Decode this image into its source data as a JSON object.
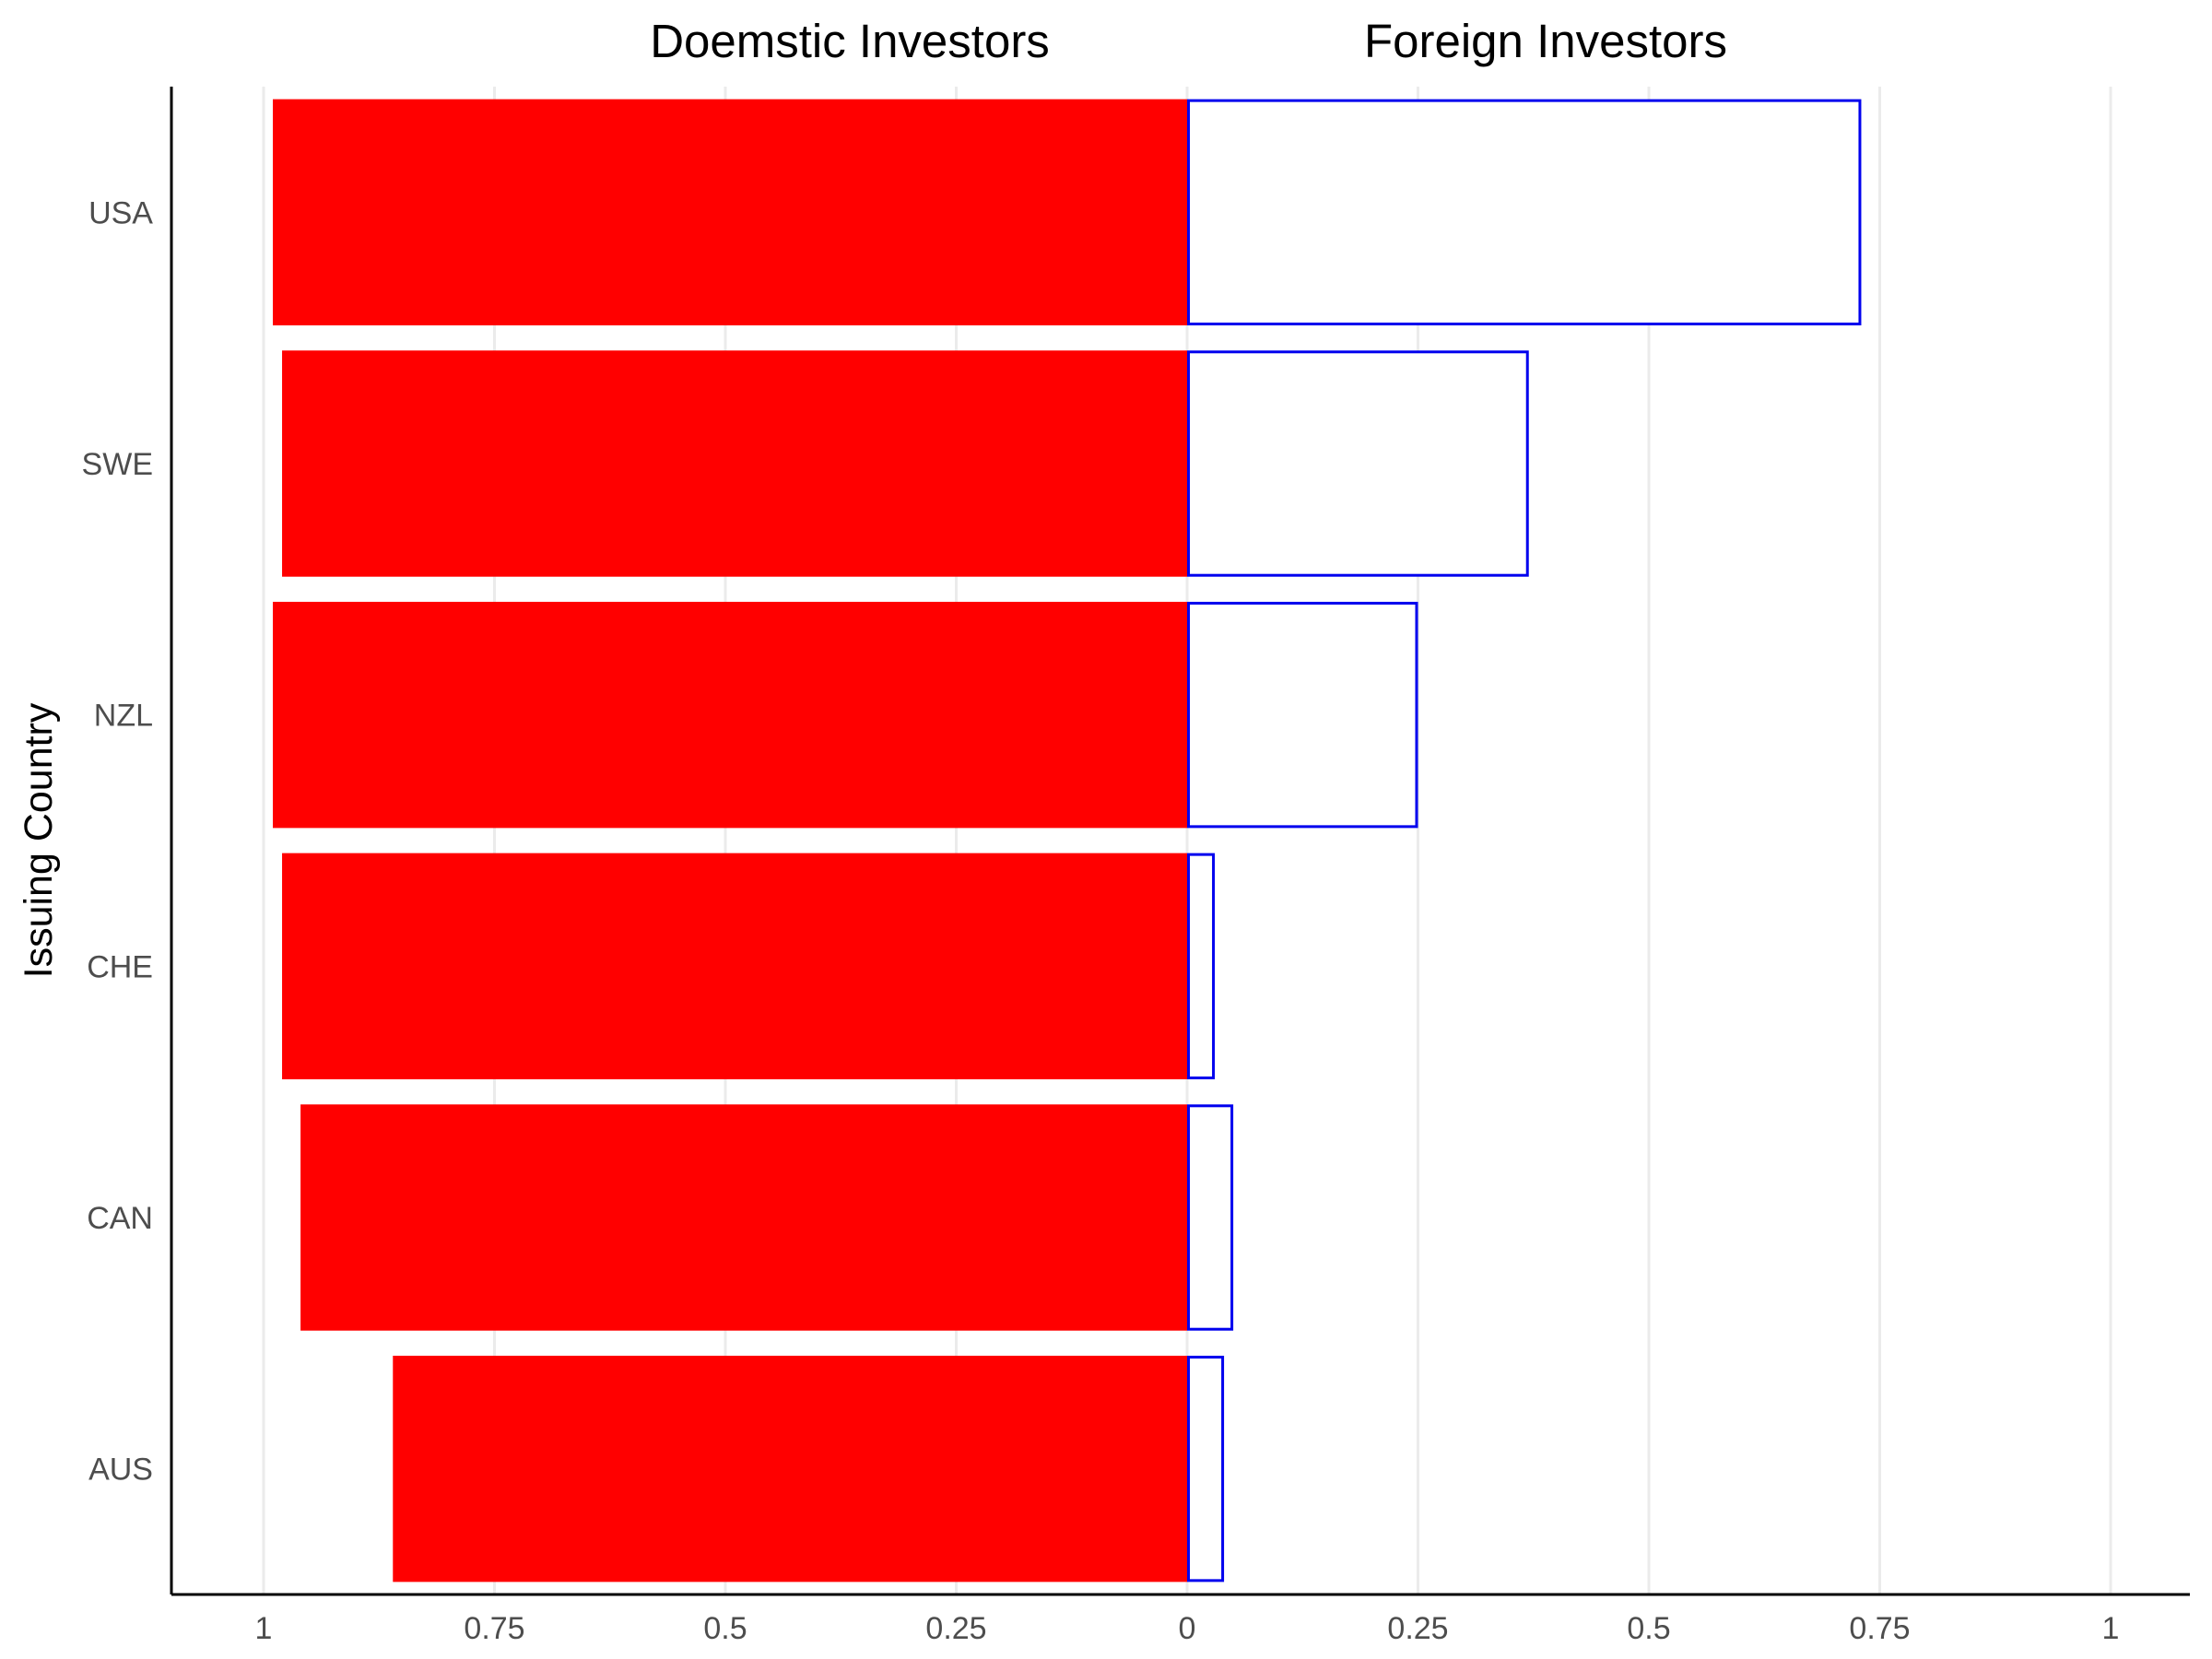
{
  "chart_data": {
    "type": "bar",
    "orientation": "horizontal-butterfly",
    "ylabel": "Issuing Country",
    "left_title": "Doemstic Investors",
    "right_title": "Foreign Investors",
    "categories": [
      "USA",
      "SWE",
      "NZL",
      "CHE",
      "CAN",
      "AUS"
    ],
    "series": [
      {
        "name": "Doemstic Investors",
        "side": "left",
        "fill": "#ff0000",
        "stroke": "none",
        "values": [
          0.99,
          0.98,
          0.99,
          0.98,
          0.96,
          0.86
        ]
      },
      {
        "name": "Foreign Investors",
        "side": "right",
        "fill": "#ffffff",
        "stroke": "#0000ee",
        "values": [
          0.73,
          0.37,
          0.25,
          0.03,
          0.05,
          0.04
        ]
      }
    ],
    "xlim": [
      -1,
      1
    ],
    "xticks": [
      -1,
      -0.75,
      -0.5,
      -0.25,
      0,
      0.25,
      0.5,
      0.75,
      1
    ],
    "xtick_labels": [
      "1",
      "0.75",
      "0.5",
      "0.25",
      "0",
      "0.25",
      "0.5",
      "0.75",
      "1"
    ],
    "grid": true,
    "colors": {
      "domestic_fill": "#ff0000",
      "foreign_stroke": "#0000ee",
      "grid": "#ebebeb",
      "axis": "#000000",
      "tick_text": "#4d4d4d"
    }
  }
}
